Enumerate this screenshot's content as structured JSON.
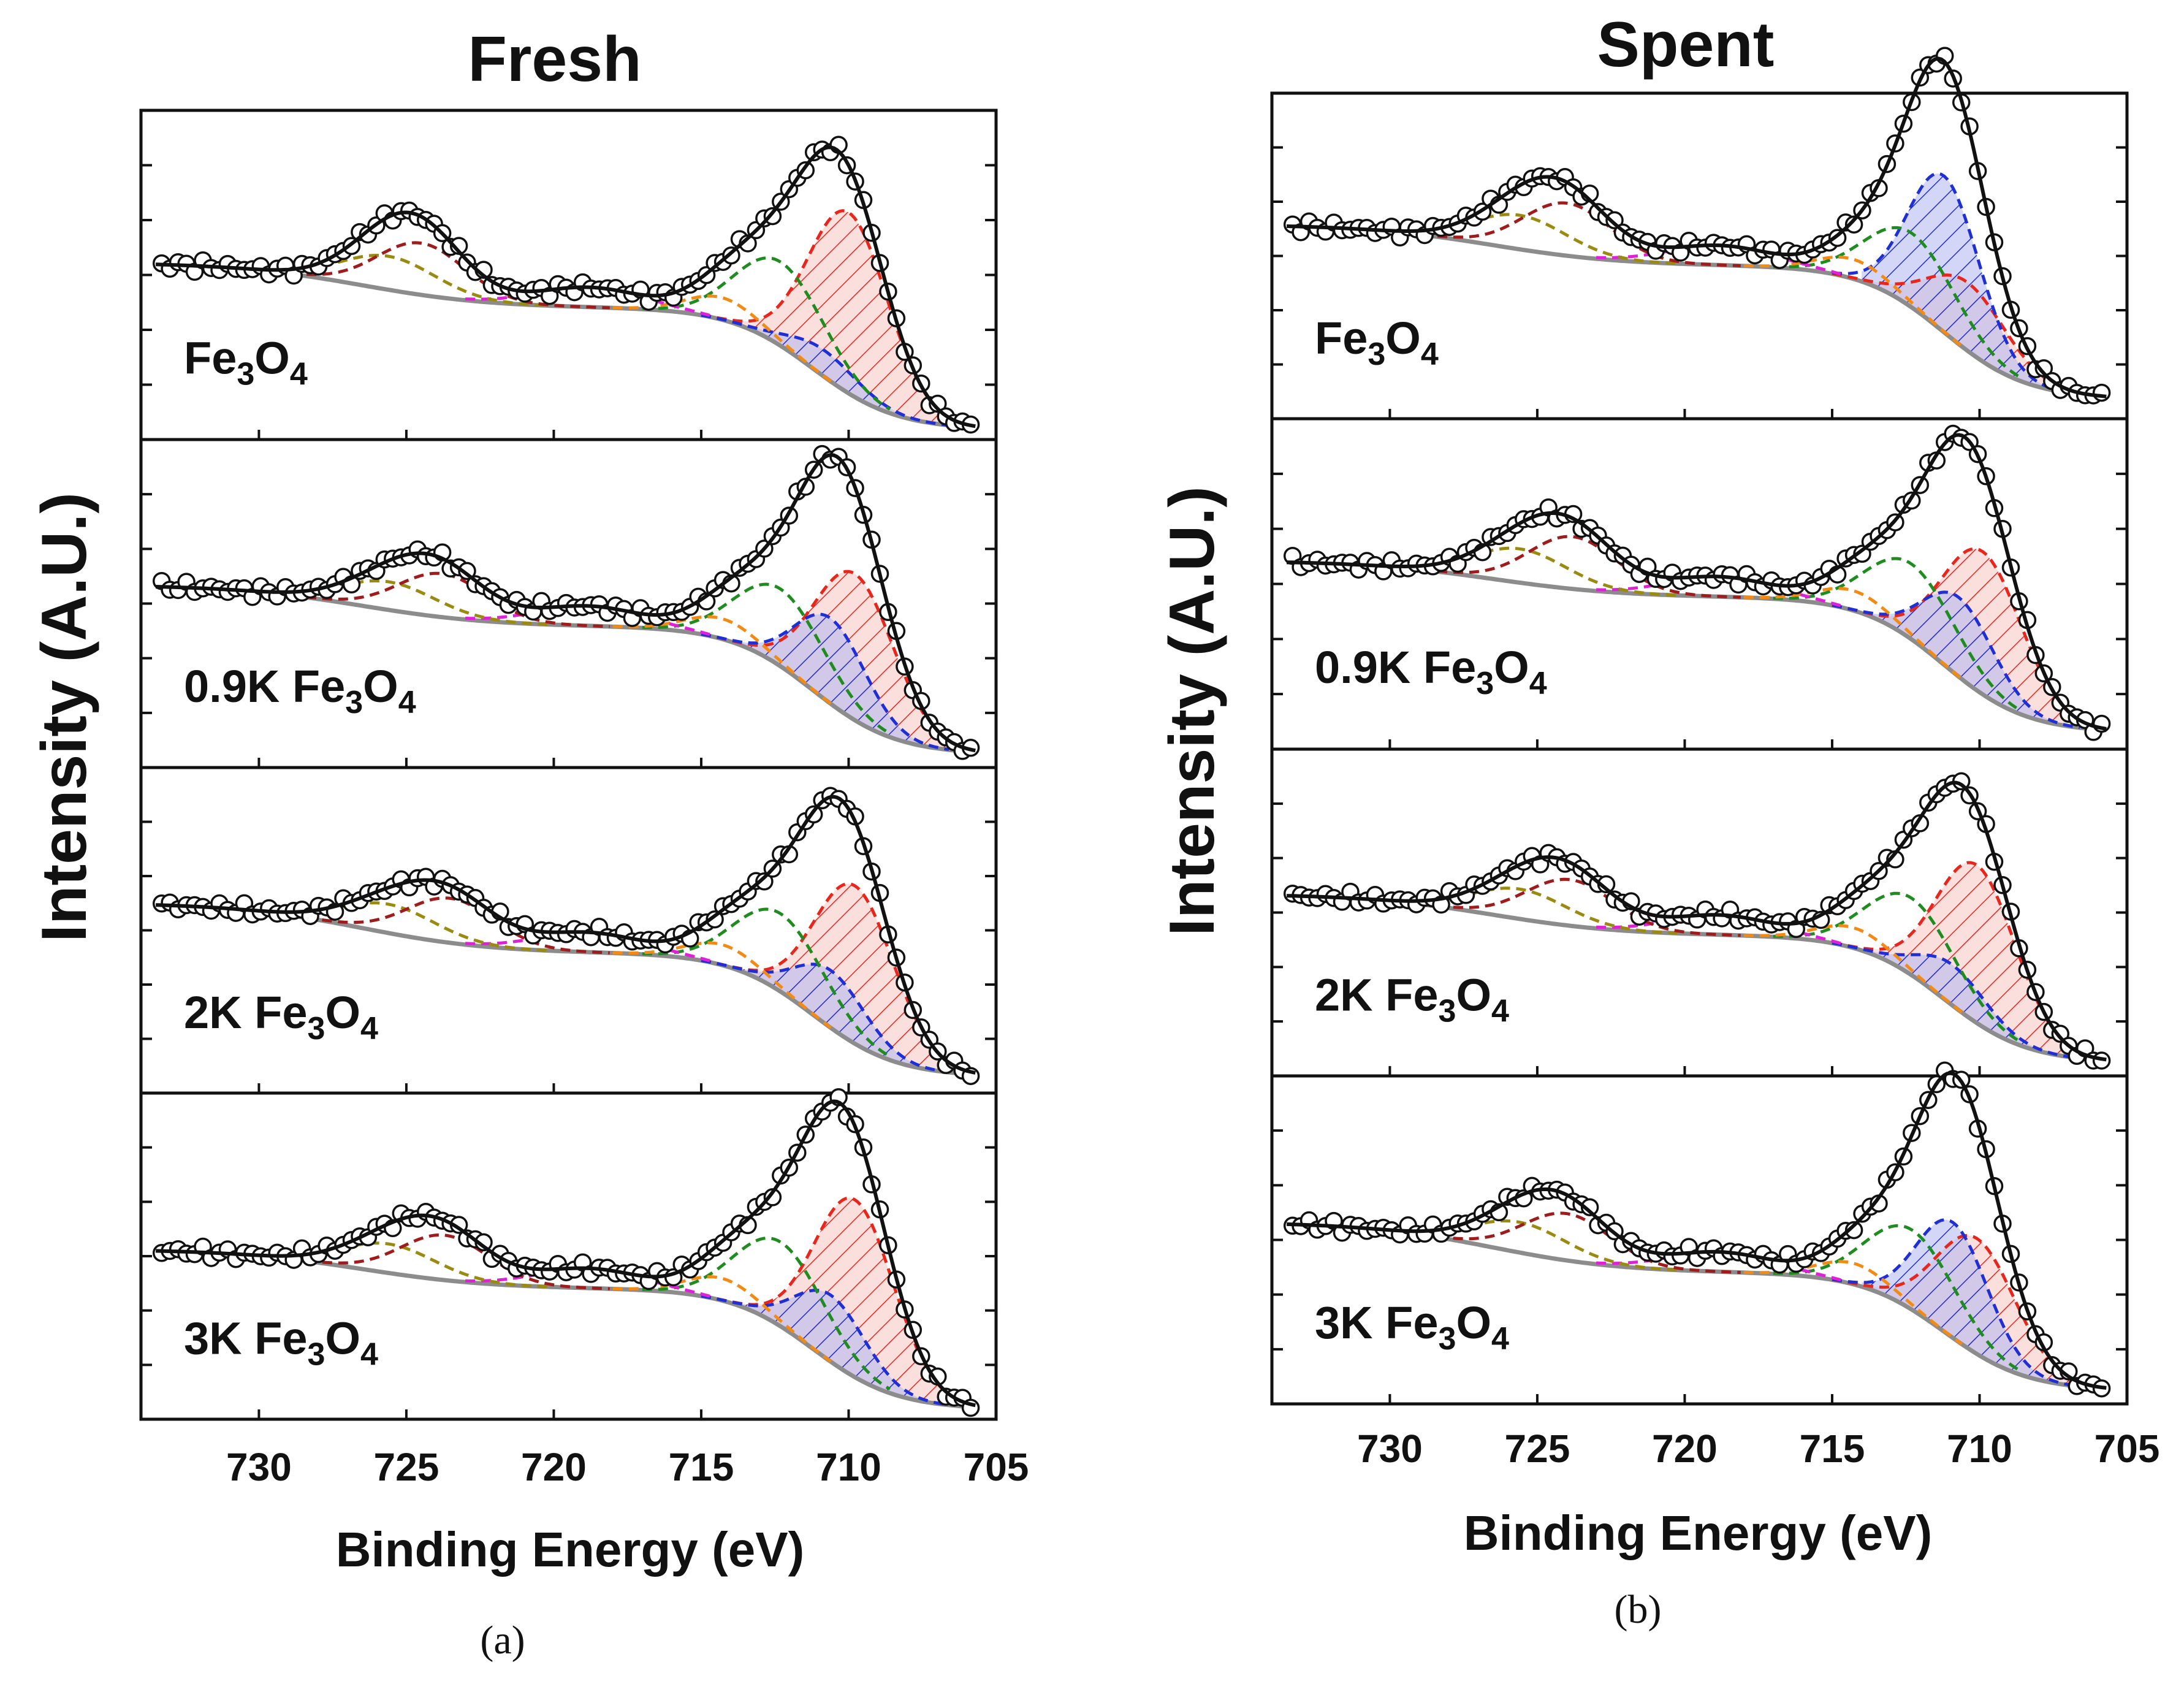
{
  "chart_data": [
    {
      "type": "line",
      "caption": "(a)",
      "title": "Fresh",
      "xlabel": "Binding Energy (eV)",
      "ylabel": "Intensity (A.U.)",
      "xlim": [
        734,
        705
      ],
      "xticks": [
        730,
        725,
        720,
        715,
        710,
        705
      ],
      "ylim": [
        0,
        1
      ],
      "panels": [
        {
          "label": {
            "main": "Fe",
            "s1": "3",
            "mid": "O",
            "s2": "4"
          },
          "baseline_mid": 0.4,
          "baseline_low": 0.03,
          "baseline_left": 0.65,
          "main_peak": {
            "x": 710.2,
            "y": 0.95
          },
          "sat_peak": {
            "x": 724.5,
            "y": 0.77
          },
          "fe3": 0.82,
          "fe2": 0.12,
          "series": [
            {
              "name": "Raw data (circles)",
              "color": "#111111"
            },
            {
              "name": "Envelope fit",
              "color": "#111111"
            },
            {
              "name": "Background",
              "color": "#8c8c8c"
            },
            {
              "name": "Fe3+ component (red, hatched)",
              "color": "#e8261c"
            },
            {
              "name": "Fe2+ component (blue, hatched)",
              "color": "#1f2fd6"
            },
            {
              "name": "Shoulder (green)",
              "color": "#1f8c1f"
            },
            {
              "name": "Shoulder (orange)",
              "color": "#f28a14"
            },
            {
              "name": "Satellite (magenta)",
              "color": "#e020d8"
            },
            {
              "name": "2p1/2 (olive)",
              "color": "#9a8a10"
            },
            {
              "name": "2p1/2 (dark red)",
              "color": "#a01c1c"
            }
          ]
        },
        {
          "label": {
            "main": "0.9K Fe",
            "s1": "3",
            "mid": "O",
            "s2": "4"
          },
          "baseline_mid": 0.43,
          "baseline_low": 0.04,
          "baseline_left": 0.66,
          "main_peak": {
            "x": 710.0,
            "y": 0.93
          },
          "sat_peak": {
            "x": 723.8,
            "y": 0.75
          },
          "fe3": 0.72,
          "fe2": 0.42
        },
        {
          "label": {
            "main": "2K Fe",
            "s1": "3",
            "mid": "O",
            "s2": "4"
          },
          "baseline_mid": 0.43,
          "baseline_low": 0.05,
          "baseline_left": 0.71,
          "main_peak": {
            "x": 710.0,
            "y": 0.94
          },
          "sat_peak": {
            "x": 723.5,
            "y": 0.8
          },
          "fe3": 0.77,
          "fe2": 0.28
        },
        {
          "label": {
            "main": "3K Fe",
            "s1": "3",
            "mid": "O",
            "s2": "4"
          },
          "baseline_mid": 0.4,
          "baseline_low": 0.03,
          "baseline_left": 0.62,
          "main_peak": {
            "x": 710.0,
            "y": 0.96
          },
          "sat_peak": {
            "x": 723.7,
            "y": 0.72
          },
          "fe3": 0.8,
          "fe2": 0.3
        }
      ]
    },
    {
      "type": "line",
      "caption": "(b)",
      "title": "Spent",
      "xlabel": "Binding Energy (eV)",
      "ylabel": "Intensity (A.U.)",
      "xlim": [
        734,
        705
      ],
      "xticks": [
        730,
        725,
        720,
        715,
        710,
        705
      ],
      "ylim": [
        0,
        1
      ],
      "panels": [
        {
          "label": {
            "main": "Fe",
            "s1": "3",
            "mid": "O",
            "s2": "4"
          },
          "baseline_mid": 0.47,
          "baseline_low": 0.06,
          "baseline_left": 0.7,
          "main_peak": {
            "x": 710.6,
            "y": 0.95
          },
          "sat_peak": {
            "x": 724.0,
            "y": 0.82
          },
          "fe3": 0.35,
          "fe2": 0.8
        },
        {
          "label": {
            "main": "0.9K Fe",
            "s1": "3",
            "mid": "O",
            "s2": "4"
          },
          "baseline_mid": 0.46,
          "baseline_low": 0.05,
          "baseline_left": 0.66,
          "main_peak": {
            "x": 710.1,
            "y": 0.94
          },
          "sat_peak": {
            "x": 723.8,
            "y": 0.78
          },
          "fe3": 0.72,
          "fe2": 0.4
        },
        {
          "label": {
            "main": "2K Fe",
            "s1": "3",
            "mid": "O",
            "s2": "4"
          },
          "baseline_mid": 0.43,
          "baseline_low": 0.04,
          "baseline_left": 0.66,
          "main_peak": {
            "x": 710.3,
            "y": 0.93
          },
          "sat_peak": {
            "x": 723.9,
            "y": 0.76
          },
          "fe3": 0.78,
          "fe2": 0.2
        },
        {
          "label": {
            "main": "3K Fe",
            "s1": "3",
            "mid": "O",
            "s2": "4"
          },
          "baseline_mid": 0.4,
          "baseline_low": 0.04,
          "baseline_left": 0.68,
          "main_peak": {
            "x": 710.3,
            "y": 0.92
          },
          "sat_peak": {
            "x": 724.0,
            "y": 0.78
          },
          "fe3": 0.55,
          "fe2": 0.55
        }
      ]
    }
  ]
}
